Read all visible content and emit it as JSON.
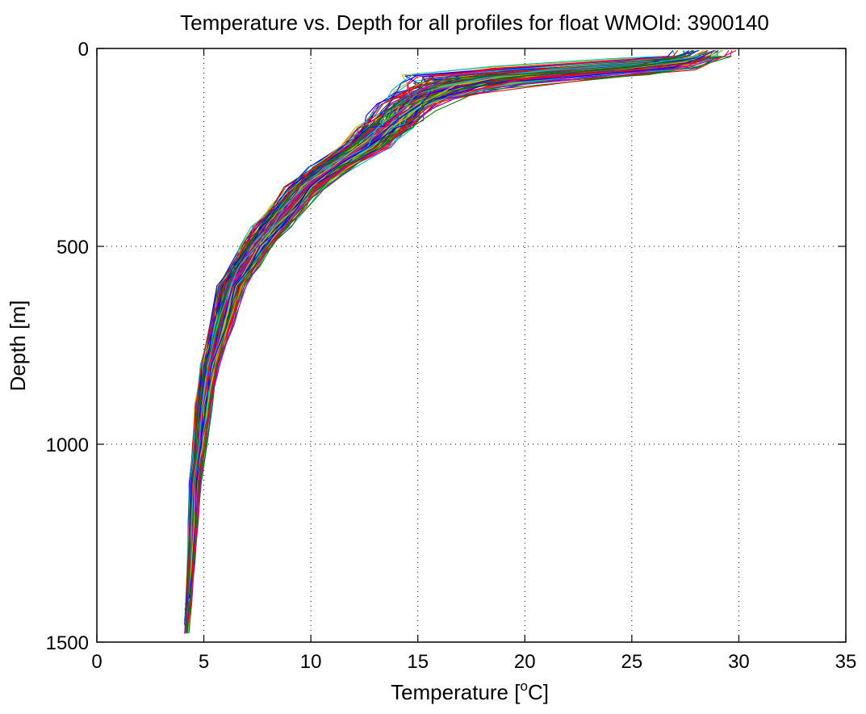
{
  "chart_data": {
    "type": "line",
    "title": "Temperature vs. Depth for all profiles for float WMOId: 3900140",
    "xlabel_prefix": "Temperature [",
    "xlabel_sup": "o",
    "xlabel_suffix": "C]",
    "ylabel": "Depth [m]",
    "xlim": [
      0,
      35
    ],
    "ylim": [
      1500,
      0
    ],
    "y_reversed": true,
    "xticks": [
      0,
      5,
      10,
      15,
      20,
      25,
      30,
      35
    ],
    "yticks": [
      0,
      500,
      1000,
      1500
    ],
    "xtick_labels": [
      "0",
      "5",
      "10",
      "15",
      "20",
      "25",
      "30",
      "35"
    ],
    "ytick_labels": [
      "0",
      "500",
      "1000",
      "1500"
    ],
    "grid": true,
    "grid_style": "dotted",
    "legend": "none",
    "series_colors": [
      "#0000ff",
      "#008000",
      "#ff0000",
      "#00bfbf",
      "#bf00bf",
      "#bfbf00",
      "#404040"
    ],
    "profile_count": 150,
    "depth_levels": [
      5,
      20,
      40,
      60,
      80,
      100,
      120,
      150,
      180,
      200,
      250,
      300,
      350,
      400,
      450,
      500,
      550,
      600,
      700,
      800,
      900,
      1000,
      1100,
      1200,
      1300,
      1400,
      1480
    ],
    "mean_profile_temperature": [
      28.5,
      28.0,
      26.5,
      22.0,
      18.0,
      16.5,
      15.5,
      14.5,
      14.0,
      13.5,
      12.5,
      11.0,
      9.8,
      9.0,
      8.2,
      7.5,
      6.9,
      6.3,
      5.8,
      5.3,
      5.0,
      4.8,
      4.6,
      4.5,
      4.4,
      4.3,
      4.2
    ],
    "spread_temperature": [
      1.5,
      1.5,
      2.0,
      3.5,
      3.0,
      2.0,
      1.5,
      1.2,
      1.2,
      1.2,
      1.1,
      1.0,
      0.9,
      0.8,
      0.8,
      0.7,
      0.6,
      0.6,
      0.5,
      0.4,
      0.35,
      0.3,
      0.25,
      0.2,
      0.15,
      0.12,
      0.1
    ]
  }
}
